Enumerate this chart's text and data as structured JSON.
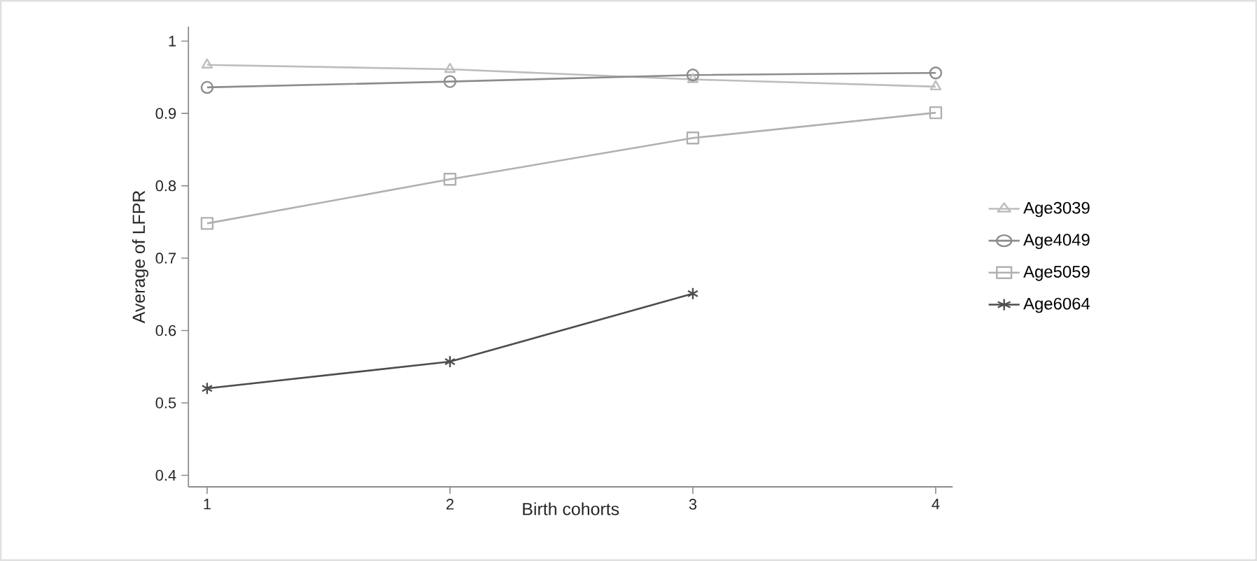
{
  "chart_data": {
    "type": "line",
    "xlabel": "Birth cohorts",
    "ylabel": "Average of LFPR",
    "x": [
      1,
      2,
      3,
      4
    ],
    "xlim": [
      0.923,
      4.07
    ],
    "xticks": [
      1,
      2,
      3,
      4
    ],
    "ylim": [
      0.384,
      1.02
    ],
    "yticks": [
      0.4,
      0.5,
      0.6,
      0.7,
      0.8,
      0.9,
      1
    ],
    "grid": false,
    "legend": "right",
    "line_style": "solid",
    "series": [
      {
        "name": "Age3039",
        "color": "#bdbdbd",
        "marker": "triangle",
        "values": [
          0.967,
          0.961,
          0.947,
          0.937
        ]
      },
      {
        "name": "Age4049",
        "color": "#8c8c8c",
        "marker": "circle",
        "values": [
          0.936,
          0.944,
          0.953,
          0.956
        ]
      },
      {
        "name": "Age5059",
        "color": "#b0b0b0",
        "marker": "square",
        "values": [
          0.748,
          0.809,
          0.866,
          0.901
        ]
      },
      {
        "name": "Age6064",
        "color": "#4d4d4d",
        "marker": "cross",
        "values": [
          0.52,
          0.557,
          0.651,
          null
        ]
      }
    ]
  }
}
